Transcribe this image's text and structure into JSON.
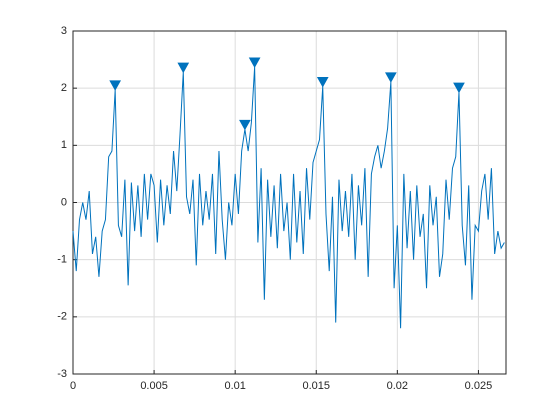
{
  "chart_data": {
    "type": "line",
    "xlim": [
      0,
      0.0267
    ],
    "ylim": [
      -3,
      3
    ],
    "xticks": [
      0,
      0.005,
      0.01,
      0.015,
      0.02,
      0.025
    ],
    "yticks": [
      -3,
      -2,
      -1,
      0,
      1,
      2,
      3
    ],
    "grid": true,
    "series": [
      {
        "color": "#0072bd",
        "x": [
          0,
          0.0002,
          0.0004,
          0.0006,
          0.0008,
          0.001,
          0.0012,
          0.0014,
          0.0016,
          0.0018,
          0.002,
          0.0022,
          0.0024,
          0.0026,
          0.0028,
          0.003,
          0.0032,
          0.0034,
          0.0036,
          0.0038,
          0.004,
          0.0042,
          0.0044,
          0.0046,
          0.0048,
          0.005,
          0.0052,
          0.0054,
          0.0056,
          0.0058,
          0.006,
          0.0062,
          0.0064,
          0.0066,
          0.0068,
          0.007,
          0.0072,
          0.0074,
          0.0076,
          0.0078,
          0.008,
          0.0082,
          0.0084,
          0.0086,
          0.0088,
          0.009,
          0.0092,
          0.0094,
          0.0096,
          0.0098,
          0.01,
          0.0102,
          0.0104,
          0.0106,
          0.0108,
          0.011,
          0.0112,
          0.0114,
          0.0116,
          0.0118,
          0.012,
          0.0122,
          0.0124,
          0.0126,
          0.0128,
          0.013,
          0.0132,
          0.0134,
          0.0136,
          0.0138,
          0.014,
          0.0142,
          0.0144,
          0.0146,
          0.0148,
          0.015,
          0.0152,
          0.0154,
          0.0156,
          0.0158,
          0.016,
          0.0162,
          0.0164,
          0.0166,
          0.0168,
          0.017,
          0.0172,
          0.0174,
          0.0176,
          0.0178,
          0.018,
          0.0182,
          0.0184,
          0.0186,
          0.0188,
          0.019,
          0.0192,
          0.0194,
          0.0196,
          0.0198,
          0.02,
          0.0202,
          0.0204,
          0.0206,
          0.0208,
          0.021,
          0.0212,
          0.0214,
          0.0216,
          0.0218,
          0.022,
          0.0222,
          0.0224,
          0.0226,
          0.0228,
          0.023,
          0.0232,
          0.0234,
          0.0236,
          0.0238,
          0.024,
          0.0242,
          0.0244,
          0.0246,
          0.0248,
          0.025,
          0.0252,
          0.0254,
          0.0256,
          0.0258,
          0.026,
          0.0262,
          0.0264,
          0.0266
        ],
        "values": [
          -0.5,
          -1.2,
          -0.3,
          0.0,
          -0.3,
          0.2,
          -0.9,
          -0.6,
          -1.3,
          -0.5,
          -0.3,
          0.8,
          0.9,
          1.97,
          -0.4,
          -0.6,
          0.4,
          -1.45,
          0.35,
          -0.5,
          0.3,
          -0.6,
          0.5,
          -0.3,
          0.5,
          0.3,
          -0.7,
          0.4,
          -0.4,
          0.3,
          -0.2,
          0.9,
          0.2,
          1.2,
          2.28,
          0.1,
          -0.2,
          0.4,
          -1.1,
          0.5,
          -0.4,
          0.2,
          -0.3,
          0.5,
          -0.9,
          0.9,
          -0.3,
          -1.0,
          0.0,
          -0.4,
          0.5,
          -0.2,
          0.9,
          1.28,
          0.9,
          1.4,
          2.37,
          -0.7,
          0.6,
          -1.7,
          0.4,
          -0.6,
          0.3,
          -0.8,
          0.5,
          -0.5,
          0.0,
          -1.0,
          0.5,
          -0.7,
          0.2,
          -0.9,
          0.6,
          -0.3,
          0.7,
          0.9,
          1.1,
          2.03,
          -0.2,
          -1.2,
          0.1,
          -2.1,
          0.4,
          -0.5,
          0.2,
          -0.6,
          0.5,
          -1.0,
          0.3,
          -0.4,
          0.6,
          -1.3,
          0.5,
          0.8,
          1.0,
          0.6,
          0.9,
          1.3,
          2.11,
          -1.5,
          -0.4,
          -2.2,
          0.5,
          -0.8,
          0.2,
          -1.0,
          0.3,
          -0.6,
          -0.2,
          -1.5,
          0.3,
          -0.4,
          0.1,
          -1.3,
          -0.9,
          0.4,
          -0.3,
          0.6,
          0.8,
          1.93,
          -0.4,
          -1.1,
          0.3,
          -1.7,
          -0.4,
          -0.5,
          0.2,
          0.5,
          -0.3,
          0.6,
          -0.9,
          -0.5,
          -0.8,
          -0.7
        ]
      },
      {
        "color": "#0072bd",
        "marker": "triangle-down",
        "x": [
          0.0026,
          0.0068,
          0.0106,
          0.0112,
          0.0154,
          0.0196,
          0.0238
        ],
        "values": [
          1.97,
          2.28,
          1.28,
          2.37,
          2.03,
          2.11,
          1.93
        ]
      }
    ]
  }
}
